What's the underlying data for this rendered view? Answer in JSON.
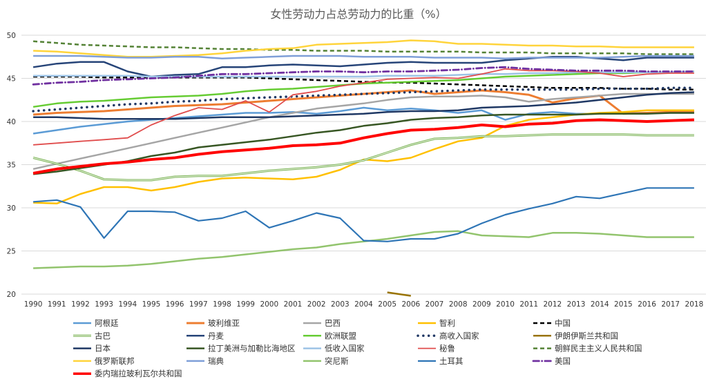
{
  "chart_data": {
    "type": "line",
    "title": "女性劳动力占总劳动力的比重（%）",
    "xlabel": "",
    "ylabel": "",
    "ylim": [
      20,
      50
    ],
    "yticks": [
      20,
      25,
      30,
      35,
      40,
      45,
      50
    ],
    "grid": "horizontal",
    "legend_position": "bottom",
    "x": [
      "1990",
      "1991",
      "1992",
      "1993",
      "1994",
      "1995",
      "1996",
      "1997",
      "1998",
      "1999",
      "2000",
      "2001",
      "2002",
      "2003",
      "2004",
      "2005",
      "2006",
      "2007",
      "2008",
      "2009",
      "2010",
      "2011",
      "2012",
      "2013",
      "2014",
      "2015",
      "2016",
      "2017",
      "2018"
    ],
    "series": [
      {
        "name": "阿根廷",
        "color": "#5b9bd5",
        "style": "solid",
        "width": 2.5,
        "values": [
          38.6,
          39.0,
          39.4,
          39.7,
          40.0,
          40.2,
          40.4,
          40.6,
          40.8,
          41.0,
          41.0,
          41.1,
          40.9,
          41.2,
          41.6,
          41.3,
          41.5,
          41.3,
          41.0,
          41.3,
          40.2,
          40.9,
          41.1,
          40.9,
          40.9,
          41.0,
          41.0,
          41.0,
          41.0
        ]
      },
      {
        "name": "玻利维亚",
        "color": "#ed7d31",
        "style": "solid",
        "width": 3,
        "values": [
          40.8,
          41.0,
          41.1,
          41.2,
          41.4,
          41.6,
          41.8,
          41.9,
          42.0,
          42.2,
          42.4,
          42.6,
          42.8,
          43.0,
          43.2,
          43.4,
          43.6,
          43.2,
          43.4,
          43.6,
          43.4,
          43.1,
          42.2,
          42.7,
          43.0,
          40.9,
          41.0,
          41.1,
          41.2
        ]
      },
      {
        "name": "巴西",
        "color": "#a5a5a5",
        "style": "solid",
        "width": 2.5,
        "values": [
          34.5,
          35.1,
          35.7,
          36.3,
          36.9,
          37.5,
          38.1,
          38.7,
          39.3,
          39.9,
          40.5,
          41.0,
          41.5,
          41.8,
          42.1,
          42.5,
          42.8,
          42.9,
          42.9,
          43.0,
          42.8,
          42.3,
          42.6,
          42.8,
          43.0,
          43.2,
          43.2,
          43.2,
          43.2
        ]
      },
      {
        "name": "智利",
        "color": "#ffc000",
        "style": "solid",
        "width": 2.5,
        "values": [
          30.6,
          30.5,
          31.6,
          32.4,
          32.4,
          32.0,
          32.4,
          33.0,
          33.4,
          33.5,
          33.4,
          33.3,
          33.6,
          34.4,
          35.6,
          35.4,
          35.8,
          36.8,
          37.7,
          38.1,
          39.5,
          40.2,
          40.5,
          40.8,
          41.0,
          41.1,
          41.3,
          41.3,
          41.3
        ]
      },
      {
        "name": "中国",
        "color": "#000000",
        "style": "dash",
        "width": 2.5,
        "values": [
          45.2,
          45.2,
          45.2,
          45.1,
          45.1,
          45.1,
          45.1,
          45.1,
          45.1,
          45.1,
          45.0,
          44.9,
          44.8,
          44.7,
          44.6,
          44.5,
          44.5,
          44.4,
          44.3,
          44.2,
          44.1,
          44.0,
          43.9,
          43.9,
          43.9,
          43.8,
          43.8,
          43.7,
          43.7
        ]
      },
      {
        "name": "古巴",
        "color": "#70ad47",
        "style": "double",
        "width": 3,
        "values": [
          35.8,
          35.1,
          34.3,
          33.3,
          33.2,
          33.2,
          33.6,
          33.7,
          33.7,
          34.0,
          34.3,
          34.5,
          34.7,
          35.0,
          35.5,
          36.4,
          37.3,
          38.0,
          38.1,
          38.3,
          38.3,
          38.4,
          38.5,
          38.5,
          38.5,
          38.5,
          38.4,
          38.4,
          38.4
        ]
      },
      {
        "name": "丹麦",
        "color": "#264478",
        "style": "solid",
        "width": 2.5,
        "values": [
          46.3,
          46.7,
          46.9,
          46.9,
          45.8,
          45.2,
          45.4,
          45.5,
          46.3,
          46.3,
          46.5,
          46.6,
          46.5,
          46.4,
          46.6,
          46.8,
          46.9,
          46.8,
          46.8,
          46.8,
          47.1,
          47.3,
          47.5,
          47.5,
          47.3,
          47.1,
          47.4,
          47.4,
          47.4
        ]
      },
      {
        "name": "欧洲联盟",
        "color": "#66cc33",
        "style": "solid",
        "width": 2.5,
        "values": [
          41.7,
          42.1,
          42.3,
          42.4,
          42.6,
          42.8,
          42.9,
          43.0,
          43.2,
          43.5,
          43.7,
          43.8,
          44.0,
          44.2,
          44.4,
          44.5,
          44.6,
          44.7,
          44.8,
          45.0,
          45.2,
          45.3,
          45.4,
          45.5,
          45.6,
          45.6,
          45.7,
          45.7,
          45.8
        ]
      },
      {
        "name": "高收入国家",
        "color": "#203864",
        "style": "dot",
        "width": 3.5,
        "values": [
          41.2,
          41.4,
          41.6,
          41.8,
          42.0,
          42.1,
          42.3,
          42.4,
          42.6,
          42.7,
          42.8,
          42.9,
          43.0,
          43.1,
          43.2,
          43.3,
          43.4,
          43.5,
          43.6,
          43.7,
          43.7,
          43.7,
          43.7,
          43.7,
          43.8,
          43.8,
          43.8,
          43.9,
          43.9
        ]
      },
      {
        "name": "伊朗伊斯兰共和国",
        "color": "#997300",
        "style": "solid",
        "width": 2.5,
        "values": [
          null,
          null,
          null,
          null,
          null,
          null,
          null,
          null,
          null,
          null,
          null,
          null,
          null,
          null,
          null,
          20.2,
          19.8,
          null,
          null,
          null,
          null,
          null,
          null,
          null,
          null,
          null,
          null,
          null,
          null
        ]
      },
      {
        "name": "日本",
        "color": "#1f3864",
        "style": "solid",
        "width": 2.5,
        "values": [
          40.5,
          40.5,
          40.4,
          40.3,
          40.3,
          40.3,
          40.3,
          40.4,
          40.5,
          40.5,
          40.5,
          40.6,
          40.7,
          40.8,
          40.9,
          41.1,
          41.2,
          41.2,
          41.3,
          41.6,
          41.7,
          41.8,
          42.0,
          42.2,
          42.5,
          42.8,
          43.1,
          43.3,
          43.4
        ]
      },
      {
        "name": "拉丁美洲与加勒比海地区",
        "color": "#375623",
        "style": "solid",
        "width": 2.5,
        "values": [
          33.9,
          34.2,
          34.6,
          35.0,
          35.4,
          36.0,
          36.4,
          37.0,
          37.3,
          37.6,
          37.9,
          38.3,
          38.7,
          39.0,
          39.5,
          39.8,
          40.2,
          40.4,
          40.5,
          40.7,
          40.8,
          40.8,
          40.8,
          40.8,
          40.9,
          40.9,
          40.9,
          41.0,
          41.0
        ]
      },
      {
        "name": "低收入国家",
        "color": "#9dc3e6",
        "style": "solid",
        "width": 2.5,
        "values": [
          45.3,
          45.3,
          45.3,
          45.3,
          45.3,
          45.2,
          45.2,
          45.2,
          45.2,
          45.2,
          45.2,
          45.2,
          45.2,
          45.2,
          45.2,
          45.3,
          45.3,
          45.3,
          45.4,
          45.5,
          45.5,
          45.6,
          45.6,
          45.7,
          45.7,
          45.7,
          45.7,
          45.7,
          45.8
        ]
      },
      {
        "name": "秘鲁",
        "color": "#e04c4c",
        "style": "solid",
        "width": 1.8,
        "values": [
          37.3,
          37.5,
          37.7,
          37.9,
          38.1,
          39.6,
          40.7,
          41.6,
          41.4,
          42.4,
          41.1,
          43.1,
          43.5,
          44.1,
          44.5,
          44.9,
          45.0,
          45.1,
          45.0,
          45.5,
          46.1,
          45.9,
          45.9,
          45.8,
          45.6,
          45.2,
          45.5,
          45.6,
          45.6
        ]
      },
      {
        "name": "朝鲜民主主义人民共和国",
        "color": "#548235",
        "style": "dash",
        "width": 2.5,
        "values": [
          49.3,
          49.1,
          48.9,
          48.8,
          48.7,
          48.6,
          48.6,
          48.5,
          48.4,
          48.4,
          48.3,
          48.3,
          48.2,
          48.2,
          48.2,
          48.1,
          48.1,
          48.1,
          48.1,
          48.0,
          48.0,
          48.0,
          47.9,
          47.9,
          47.9,
          47.9,
          47.8,
          47.8,
          47.8
        ]
      },
      {
        "name": "俄罗斯联邦",
        "color": "#ffd43b",
        "style": "solid",
        "width": 2.5,
        "values": [
          48.2,
          48.1,
          47.9,
          47.7,
          47.5,
          47.5,
          47.6,
          47.7,
          47.9,
          48.2,
          48.4,
          48.5,
          48.9,
          49.0,
          49.1,
          49.2,
          49.4,
          49.3,
          49.0,
          49.0,
          48.9,
          48.8,
          48.8,
          48.7,
          48.7,
          48.6,
          48.6,
          48.6,
          48.6
        ]
      },
      {
        "name": "瑞典",
        "color": "#7f9fd8",
        "style": "solid",
        "width": 2.5,
        "values": [
          47.6,
          47.6,
          47.6,
          47.5,
          47.4,
          47.4,
          47.5,
          47.5,
          47.3,
          47.4,
          47.5,
          47.6,
          47.6,
          47.6,
          47.5,
          47.5,
          47.5,
          47.4,
          47.4,
          47.4,
          47.3,
          47.4,
          47.4,
          47.4,
          47.4,
          47.5,
          47.6,
          47.6,
          47.6
        ]
      },
      {
        "name": "突尼斯",
        "color": "#92c46d",
        "style": "solid",
        "width": 2.5,
        "values": [
          23.0,
          23.1,
          23.2,
          23.2,
          23.3,
          23.5,
          23.8,
          24.1,
          24.3,
          24.6,
          24.9,
          25.2,
          25.4,
          25.8,
          26.1,
          26.4,
          26.8,
          27.2,
          27.3,
          26.8,
          26.7,
          26.6,
          27.1,
          27.1,
          27.0,
          26.8,
          26.6,
          26.6,
          26.6
        ]
      },
      {
        "name": "土耳其",
        "color": "#2e75b6",
        "style": "solid",
        "width": 2.2,
        "values": [
          30.7,
          30.9,
          30.1,
          26.5,
          29.6,
          29.6,
          29.5,
          28.5,
          28.8,
          29.6,
          27.7,
          28.5,
          29.4,
          28.8,
          26.2,
          26.1,
          26.4,
          26.4,
          27.0,
          28.2,
          29.2,
          29.9,
          30.5,
          31.3,
          31.1,
          31.7,
          32.3,
          32.3,
          32.3
        ]
      },
      {
        "name": "美国",
        "color": "#7030a0",
        "style": "dashdot",
        "width": 2.8,
        "values": [
          44.3,
          44.5,
          44.6,
          44.8,
          44.9,
          45.0,
          45.1,
          45.3,
          45.5,
          45.5,
          45.6,
          45.7,
          45.8,
          45.8,
          45.7,
          45.8,
          45.8,
          45.9,
          46.0,
          46.2,
          46.3,
          46.1,
          46.0,
          45.9,
          45.9,
          45.9,
          45.8,
          45.8,
          45.8
        ]
      },
      {
        "name": "委内瑞拉玻利瓦尔共和国",
        "color": "#ff0000",
        "style": "solid",
        "width": 4,
        "values": [
          34.0,
          34.5,
          34.8,
          35.1,
          35.3,
          35.6,
          35.8,
          36.2,
          36.5,
          36.7,
          36.9,
          37.2,
          37.3,
          37.5,
          38.1,
          38.6,
          39.0,
          39.1,
          39.3,
          39.6,
          39.4,
          39.7,
          39.8,
          40.1,
          40.2,
          40.1,
          40.0,
          40.1,
          40.2
        ]
      }
    ]
  }
}
